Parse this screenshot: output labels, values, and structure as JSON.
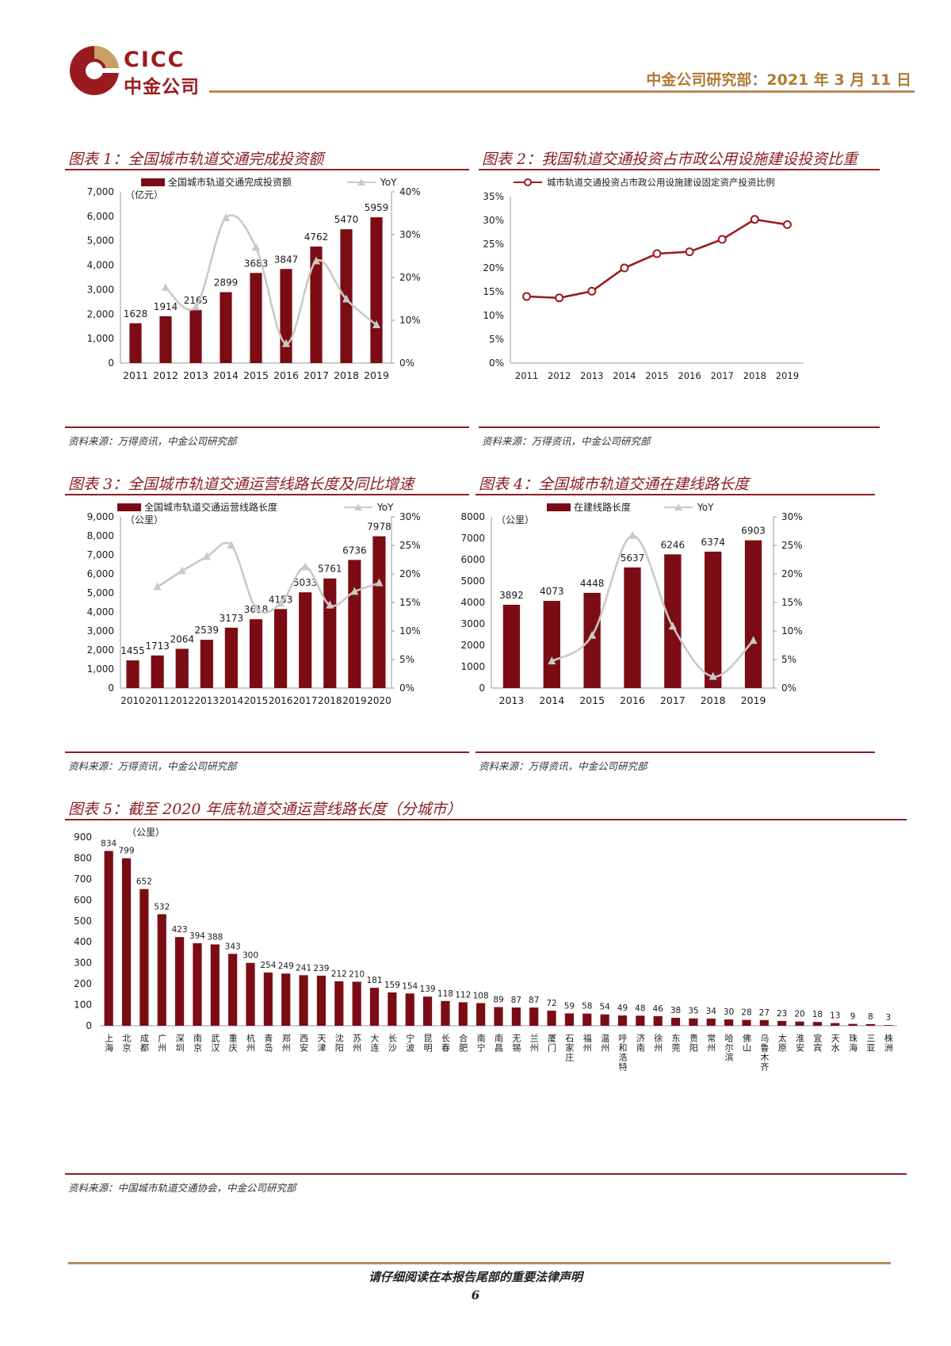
{
  "header": {
    "brand_en": "CICC",
    "brand_cn": "中金公司",
    "date": "中金公司研究部：2021 年 3 月 11 日"
  },
  "colors": {
    "bar": "#7b0c14",
    "yoy_line": "#c9c9c5",
    "marker": "#9a1b1f",
    "gold": "#b8895a",
    "title": "#8a1e22"
  },
  "charts": {
    "c1": {
      "title": "图表 1：全国城市轨道交通完成投资额",
      "source": "资料来源：万得资讯，中金公司研究部"
    },
    "c2": {
      "title": "图表 2：我国轨道交通投资占市政公用设施建设投资比重",
      "source": "资料来源：万得资讯，中金公司研究部"
    },
    "c3": {
      "title": "图表 3：全国城市轨道交通运营线路长度及同比增速",
      "source": "资料来源：万得资讯，中金公司研究部"
    },
    "c4": {
      "title": "图表 4：全国城市轨道交通在建线路长度",
      "source": "资料来源：万得资讯，中金公司研究部"
    },
    "c5": {
      "title": "图表 5：截至 2020 年底轨道交通运营线路长度（分城市）",
      "source": "资料来源：中国城市轨道交通协会，中金公司研究部"
    }
  },
  "chart_data": [
    {
      "id": "c1",
      "type": "bar",
      "title": "图表 1：全国城市轨道交通完成投资额",
      "unit_label": "（亿元）",
      "categories": [
        "2011",
        "2012",
        "2013",
        "2014",
        "2015",
        "2016",
        "2017",
        "2018",
        "2019"
      ],
      "series": [
        {
          "name": "全国城市轨道交通完成投资额",
          "type": "bar",
          "axis": "left",
          "values": [
            1628,
            1914,
            2165,
            2899,
            3683,
            3847,
            4762,
            5470,
            5959
          ]
        },
        {
          "name": "YoY",
          "type": "line",
          "axis": "right",
          "values": [
            null,
            17.6,
            13.1,
            33.9,
            27.0,
            4.5,
            23.8,
            14.9,
            8.9
          ]
        }
      ],
      "y_left": {
        "min": 0,
        "max": 7000,
        "ticks": [
          "0",
          "1,000",
          "2,000",
          "3,000",
          "4,000",
          "5,000",
          "6,000",
          "7,000"
        ]
      },
      "y_right": {
        "min": 0,
        "max": 40,
        "ticks": [
          "0%",
          "10%",
          "20%",
          "30%",
          "40%"
        ]
      },
      "legend": "top"
    },
    {
      "id": "c2",
      "type": "line",
      "title": "图表 2：我国轨道交通投资占市政公用设施建设投资比重",
      "categories": [
        "2011",
        "2012",
        "2013",
        "2014",
        "2015",
        "2016",
        "2017",
        "2018",
        "2019"
      ],
      "series": [
        {
          "name": "城市轨道交通投资占市政公用设施建设固定资产投资比例",
          "values": [
            14.0,
            13.7,
            15.1,
            20.0,
            23.0,
            23.4,
            26.0,
            30.2,
            29.1
          ]
        }
      ],
      "y_left": {
        "min": 0,
        "max": 35,
        "ticks": [
          "0%",
          "5%",
          "10%",
          "15%",
          "20%",
          "25%",
          "30%",
          "35%"
        ]
      },
      "legend": "top"
    },
    {
      "id": "c3",
      "type": "bar",
      "title": "图表 3：全国城市轨道交通运营线路长度及同比增速",
      "unit_label": "（公里）",
      "categories": [
        "2010",
        "2011",
        "2012",
        "2013",
        "2014",
        "2015",
        "2016",
        "2017",
        "2018",
        "2019",
        "2020"
      ],
      "series": [
        {
          "name": "全国城市轨道交通运营线路长度",
          "type": "bar",
          "axis": "left",
          "values": [
            1455,
            1713,
            2064,
            2539,
            3173,
            3618,
            4153,
            5033,
            5761,
            6736,
            7978
          ]
        },
        {
          "name": "YoY",
          "type": "line",
          "axis": "right",
          "values": [
            null,
            17.7,
            20.5,
            23.0,
            25.0,
            14.0,
            14.8,
            21.2,
            14.5,
            16.9,
            18.4
          ]
        }
      ],
      "y_left": {
        "min": 0,
        "max": 9000,
        "ticks": [
          "0",
          "1,000",
          "2,000",
          "3,000",
          "4,000",
          "5,000",
          "6,000",
          "7,000",
          "8,000",
          "9,000"
        ]
      },
      "y_right": {
        "min": 0,
        "max": 30,
        "ticks": [
          "0%",
          "5%",
          "10%",
          "15%",
          "20%",
          "25%",
          "30%"
        ]
      },
      "legend": "top"
    },
    {
      "id": "c4",
      "type": "bar",
      "title": "图表 4：全国城市轨道交通在建线路长度",
      "unit_label": "（公里）",
      "categories": [
        "2013",
        "2014",
        "2015",
        "2016",
        "2017",
        "2018",
        "2019"
      ],
      "series": [
        {
          "name": "在建线路长度",
          "type": "bar",
          "axis": "left",
          "values": [
            3892,
            4073,
            4448,
            5637,
            6246,
            6374,
            6903
          ]
        },
        {
          "name": "YoY",
          "type": "line",
          "axis": "right",
          "values": [
            null,
            4.7,
            9.2,
            26.7,
            10.8,
            2.0,
            8.3
          ]
        }
      ],
      "y_left": {
        "min": 0,
        "max": 8000,
        "ticks": [
          "0",
          "1000",
          "2000",
          "3000",
          "4000",
          "5000",
          "6000",
          "7000",
          "8000"
        ]
      },
      "y_right": {
        "min": 0,
        "max": 30,
        "ticks": [
          "0%",
          "5%",
          "10%",
          "15%",
          "20%",
          "25%",
          "30%"
        ]
      },
      "legend": "top"
    },
    {
      "id": "c5",
      "type": "bar",
      "title": "图表 5：截至 2020 年底轨道交通运营线路长度（分城市）",
      "unit_label": "（公里）",
      "categories": [
        "上海",
        "北京",
        "成都",
        "广州",
        "深圳",
        "南京",
        "武汉",
        "重庆",
        "杭州",
        "青岛",
        "郑州",
        "西安",
        "天津",
        "沈阳",
        "苏州",
        "大连",
        "长沙",
        "宁波",
        "昆明",
        "长春",
        "合肥",
        "南宁",
        "南昌",
        "无锡",
        "兰州",
        "厦门",
        "石家庄",
        "福州",
        "温州",
        "呼和浩特",
        "济南",
        "徐州",
        "东莞",
        "贵阳",
        "常州",
        "哈尔滨",
        "佛山",
        "乌鲁木齐",
        "太原",
        "淮安",
        "宜宾",
        "天水",
        "珠海",
        "三亚",
        "株洲"
      ],
      "series": [
        {
          "name": "运营线路长度",
          "values": [
            834,
            799,
            652,
            532,
            423,
            394,
            388,
            343,
            300,
            254,
            249,
            241,
            239,
            212,
            210,
            181,
            159,
            154,
            139,
            118,
            112,
            108,
            89,
            87,
            87,
            72,
            59,
            58,
            54,
            49,
            48,
            46,
            38,
            35,
            34,
            30,
            28,
            27,
            23,
            20,
            18,
            13,
            9,
            8,
            3
          ]
        }
      ],
      "y_left": {
        "min": 0,
        "max": 900,
        "ticks": [
          "0",
          "100",
          "200",
          "300",
          "400",
          "500",
          "600",
          "700",
          "800",
          "900"
        ]
      }
    }
  ],
  "footer": {
    "disclaimer": "请仔细阅读在本报告尾部的重要法律声明",
    "page": "6"
  }
}
